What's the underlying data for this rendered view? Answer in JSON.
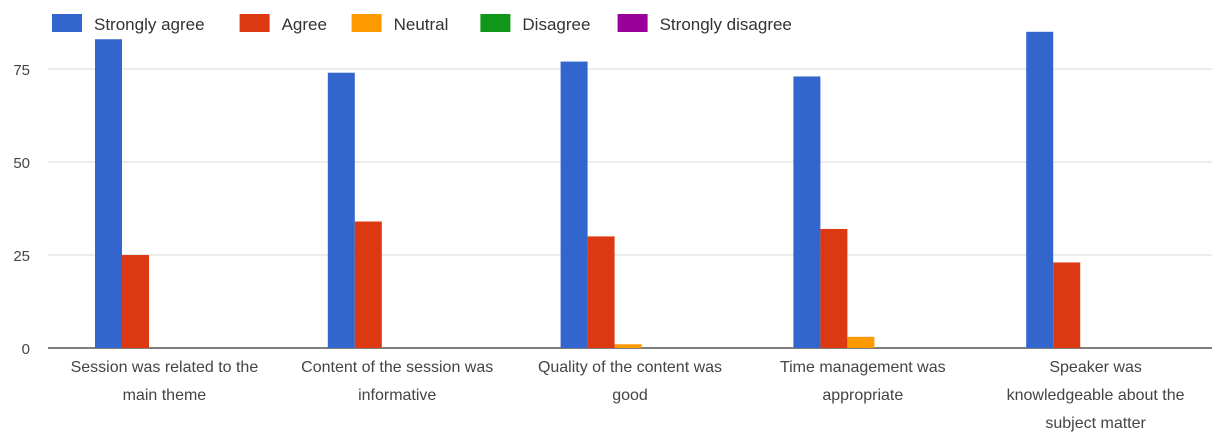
{
  "chart_data": {
    "type": "bar",
    "title": "",
    "xlabel": "",
    "ylabel": "",
    "ylim": [
      0,
      90
    ],
    "yticks": [
      0,
      25,
      50,
      75
    ],
    "grid": true,
    "legend_position": "top-left",
    "categories": [
      [
        "Session was related to the",
        "main theme"
      ],
      [
        "Content of the session was",
        "informative"
      ],
      [
        "Quality of the content was",
        "good"
      ],
      [
        "Time management was",
        "appropriate"
      ],
      [
        "Speaker was",
        "knowledgeable about the",
        "subject matter"
      ]
    ],
    "series": [
      {
        "name": "Strongly agree",
        "color": "#3366cc",
        "values": [
          83,
          74,
          77,
          73,
          85
        ]
      },
      {
        "name": "Agree",
        "color": "#dc3912",
        "values": [
          25,
          34,
          30,
          32,
          23
        ]
      },
      {
        "name": "Neutral",
        "color": "#ff9900",
        "values": [
          0,
          0,
          1,
          3,
          0
        ]
      },
      {
        "name": "Disagree",
        "color": "#109618",
        "values": [
          0,
          0,
          0,
          0,
          0
        ]
      },
      {
        "name": "Strongly disagree",
        "color": "#990099",
        "values": [
          0,
          0,
          0,
          0,
          0
        ]
      }
    ]
  }
}
